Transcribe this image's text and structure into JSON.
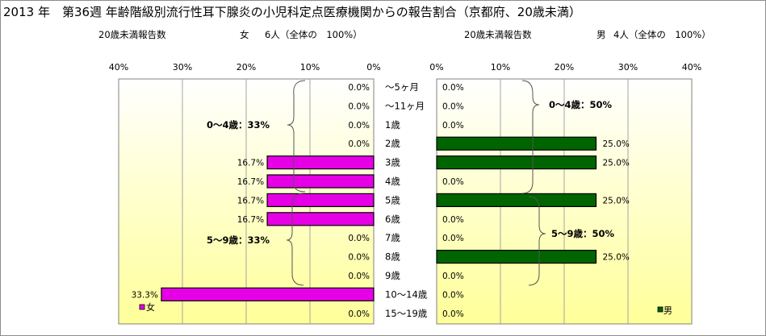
{
  "title": "2013 年　第36週 年齢階級別流行性耳下腺炎の小児科定点医療機関からの報告割合（京都府、20歳未満）",
  "subtitle_left": {
    "label": "20歳未満報告数",
    "sex": "女",
    "info": "6人（全体の　100%）"
  },
  "subtitle_right": {
    "label": "20歳未満報告数",
    "sex": "男",
    "info": "4人（全体の　100%）"
  },
  "colors": {
    "female": "#e600e6",
    "male": "#006400",
    "bg_top": "#ffffff",
    "bg_bottom": "#ffff99"
  },
  "chart_data": [
    {
      "type": "bar",
      "orientation": "horizontal",
      "direction": "right-to-left",
      "series": [
        {
          "name": "女",
          "values": [
            0.0,
            0.0,
            0.0,
            0.0,
            16.7,
            16.7,
            16.7,
            16.7,
            0.0,
            0.0,
            0.0,
            33.3,
            0.0
          ]
        }
      ],
      "categories": [
        "～5ヶ月",
        "～11ヶ月",
        "1歳",
        "2歳",
        "3歳",
        "4歳",
        "5歳",
        "6歳",
        "7歳",
        "8歳",
        "9歳",
        "10～14歳",
        "15～19歳"
      ],
      "value_labels": [
        "0.0%",
        "0.0%",
        "0.0%",
        "0.0%",
        "16.7%",
        "16.7%",
        "16.7%",
        "16.7%",
        "0.0%",
        "0.0%",
        "0.0%",
        "33.3%",
        "0.0%"
      ],
      "xlim": [
        0,
        40
      ],
      "ticks": [
        "40%",
        "30%",
        "20%",
        "10%",
        "0%"
      ],
      "grid": true,
      "legend": "bottom-left",
      "annotations": [
        "0～4歳：33%",
        "5～9歳：33%"
      ]
    },
    {
      "type": "bar",
      "orientation": "horizontal",
      "direction": "left-to-right",
      "series": [
        {
          "name": "男",
          "values": [
            0.0,
            0.0,
            0.0,
            25.0,
            25.0,
            0.0,
            25.0,
            0.0,
            0.0,
            25.0,
            0.0,
            0.0,
            0.0
          ]
        }
      ],
      "categories": [
        "～5ヶ月",
        "～11ヶ月",
        "1歳",
        "2歳",
        "3歳",
        "4歳",
        "5歳",
        "6歳",
        "7歳",
        "8歳",
        "9歳",
        "10～14歳",
        "15～19歳"
      ],
      "value_labels": [
        "0.0%",
        "0.0%",
        "0.0%",
        "25.0%",
        "25.0%",
        "0.0%",
        "25.0%",
        "0.0%",
        "0.0%",
        "25.0%",
        "0.0%",
        "0.0%",
        "0.0%"
      ],
      "xlim": [
        0,
        40
      ],
      "ticks": [
        "0%",
        "10%",
        "20%",
        "30%",
        "40%"
      ],
      "grid": true,
      "legend": "bottom-right",
      "annotations": [
        "0～4歳：50%",
        "5～9歳：50%"
      ]
    }
  ]
}
